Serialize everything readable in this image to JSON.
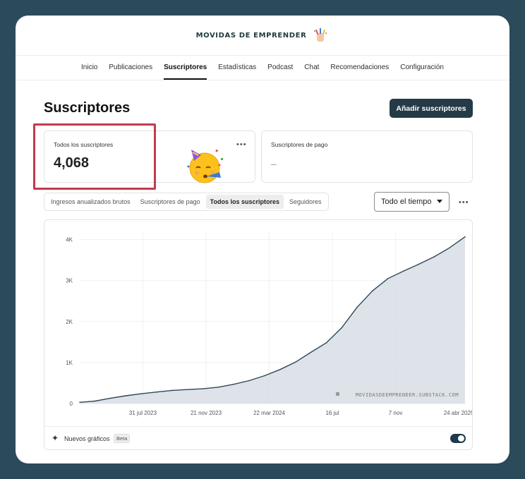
{
  "publication": {
    "name": "MOVIDAS DE EMPRENDER"
  },
  "nav": {
    "items": [
      {
        "label": "Inicio"
      },
      {
        "label": "Publicaciones"
      },
      {
        "label": "Suscriptores",
        "active": true
      },
      {
        "label": "Estadísticas"
      },
      {
        "label": "Podcast"
      },
      {
        "label": "Chat"
      },
      {
        "label": "Recomendaciones"
      },
      {
        "label": "Configuración"
      }
    ]
  },
  "page": {
    "title": "Suscriptores",
    "add_button": "Añadir suscriptores"
  },
  "stats": {
    "all": {
      "label": "Todos los suscriptores",
      "value": "4,068",
      "emoji": "partying-face-icon"
    },
    "paid": {
      "label": "Suscriptores de pago",
      "value": "–"
    }
  },
  "filters": {
    "tabs": [
      {
        "label": "Ingresos anualizados brutos"
      },
      {
        "label": "Suscriptores de pago"
      },
      {
        "label": "Todos los suscriptores",
        "active": true
      },
      {
        "label": "Seguidores"
      }
    ],
    "range_select": {
      "value": "Todo el tiempo"
    }
  },
  "chart_data": {
    "type": "area",
    "x_tick_labels": [
      "31 jul 2023",
      "21 nov 2023",
      "22 mar 2024",
      "16 jul",
      "7 nov",
      "24 abr 2025"
    ],
    "y_tick_labels": [
      "0",
      "1K",
      "2K",
      "3K",
      "4K"
    ],
    "ylim": [
      0,
      4200
    ],
    "x": [
      "2023-05",
      "2023-06",
      "2023-07",
      "2023-08",
      "2023-09",
      "2023-10",
      "2023-11",
      "2023-12",
      "2024-01",
      "2024-02",
      "2024-03",
      "2024-04",
      "2024-05",
      "2024-06",
      "2024-07",
      "2024-08",
      "2024-09",
      "2024-10",
      "2024-11",
      "2024-12",
      "2025-01",
      "2025-02",
      "2025-03",
      "2025-04",
      "2025-05",
      "2025-06"
    ],
    "values": [
      30,
      60,
      130,
      190,
      240,
      280,
      320,
      340,
      360,
      400,
      470,
      560,
      680,
      830,
      1010,
      1250,
      1480,
      1850,
      2350,
      2750,
      3050,
      3230,
      3400,
      3580,
      3800,
      4068
    ],
    "grid": true,
    "watermark": "MOVIDASDEEMPRENDER.SUBSTACK.COM",
    "colors": {
      "line": "#2f4858",
      "fill": "#d3dae1"
    }
  },
  "chart_footer": {
    "label": "Nuevos gráficos",
    "badge": "Beta",
    "toggle_on": true
  }
}
